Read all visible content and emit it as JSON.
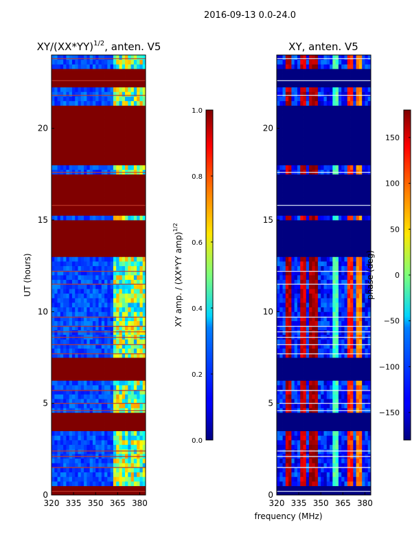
{
  "figure": {
    "suptitle": "2016-09-13 0.0-24.0",
    "shared_xlabel": "frequency (MHz)"
  },
  "chart_data": [
    {
      "type": "heatmap",
      "id": "amp",
      "title": "XY/(XX*YY)",
      "title_exponent": "1/2",
      "title_suffix": ", anten. V5",
      "xlabel": "frequency (MHz)",
      "ylabel": "UT (hours)",
      "xlim": [
        320,
        384
      ],
      "ylim": [
        0,
        24
      ],
      "xticks": [
        320,
        335,
        350,
        365,
        380
      ],
      "yticks": [
        0,
        5,
        10,
        15,
        20
      ],
      "fill_value": 1.0,
      "saturated_bands_hours": [
        [
          0,
          0.5
        ],
        [
          3.4,
          4.4
        ],
        [
          6.2,
          7.5
        ],
        [
          12.9,
          15.1
        ],
        [
          15.3,
          17.4
        ],
        [
          18.0,
          21.3
        ],
        [
          22.3,
          23.3
        ]
      ],
      "flag_line_hours": [
        0.2,
        1.5,
        2.4,
        2.1,
        4.6,
        5.0,
        5.7,
        7.7,
        8.2,
        8.6,
        8.9,
        9.2,
        9.7,
        11.5,
        12.2,
        15.8,
        17.6,
        21.8,
        22.6,
        23.8
      ],
      "structure": {
        "low_freq_level": 0.2,
        "band_edge_mhz": 363,
        "high_freq_level": 0.5
      },
      "colorbar": {
        "label": "XY amp. / (XX*YY amp)",
        "label_exponent": "1/2",
        "range": [
          0.0,
          1.0
        ],
        "ticks": [
          0.0,
          0.2,
          0.4,
          0.6,
          0.8,
          1.0
        ],
        "tick_labels": [
          "0.0",
          "0.2",
          "0.4",
          "0.6",
          "0.8",
          "1.0"
        ]
      }
    },
    {
      "type": "heatmap",
      "id": "phase",
      "title": "XY, anten. V5",
      "xlabel": "frequency (MHz)",
      "ylabel": "",
      "xlim": [
        320,
        384
      ],
      "ylim": [
        0,
        24
      ],
      "xticks": [
        320,
        335,
        350,
        365,
        380
      ],
      "yticks": [
        0,
        5,
        10,
        15,
        20
      ],
      "fill_value": -180,
      "saturated_bands_hours": [
        [
          0,
          0.5
        ],
        [
          3.4,
          4.4
        ],
        [
          6.2,
          7.5
        ],
        [
          12.9,
          15.1
        ],
        [
          15.3,
          17.4
        ],
        [
          18.0,
          21.3
        ],
        [
          22.3,
          23.3
        ]
      ],
      "flag_line_hours": [
        0.2,
        1.5,
        2.4,
        2.1,
        4.6,
        5.0,
        5.7,
        7.7,
        8.2,
        8.6,
        8.9,
        9.2,
        9.7,
        11.5,
        12.2,
        15.8,
        17.6,
        21.8,
        22.6,
        23.8
      ],
      "structure": {
        "phase_streaks_mhz": [
          328,
          338,
          345,
          360,
          370,
          376
        ],
        "phase_streak_values_deg": [
          160,
          150,
          170,
          -20,
          120,
          90
        ]
      },
      "colorbar": {
        "label": "phase (deg)",
        "range": [
          -180,
          180
        ],
        "ticks": [
          -150,
          -100,
          -50,
          0,
          50,
          100,
          150
        ],
        "tick_labels": [
          "−150",
          "−100",
          "−50",
          "0",
          "50",
          "100",
          "150"
        ]
      }
    }
  ]
}
